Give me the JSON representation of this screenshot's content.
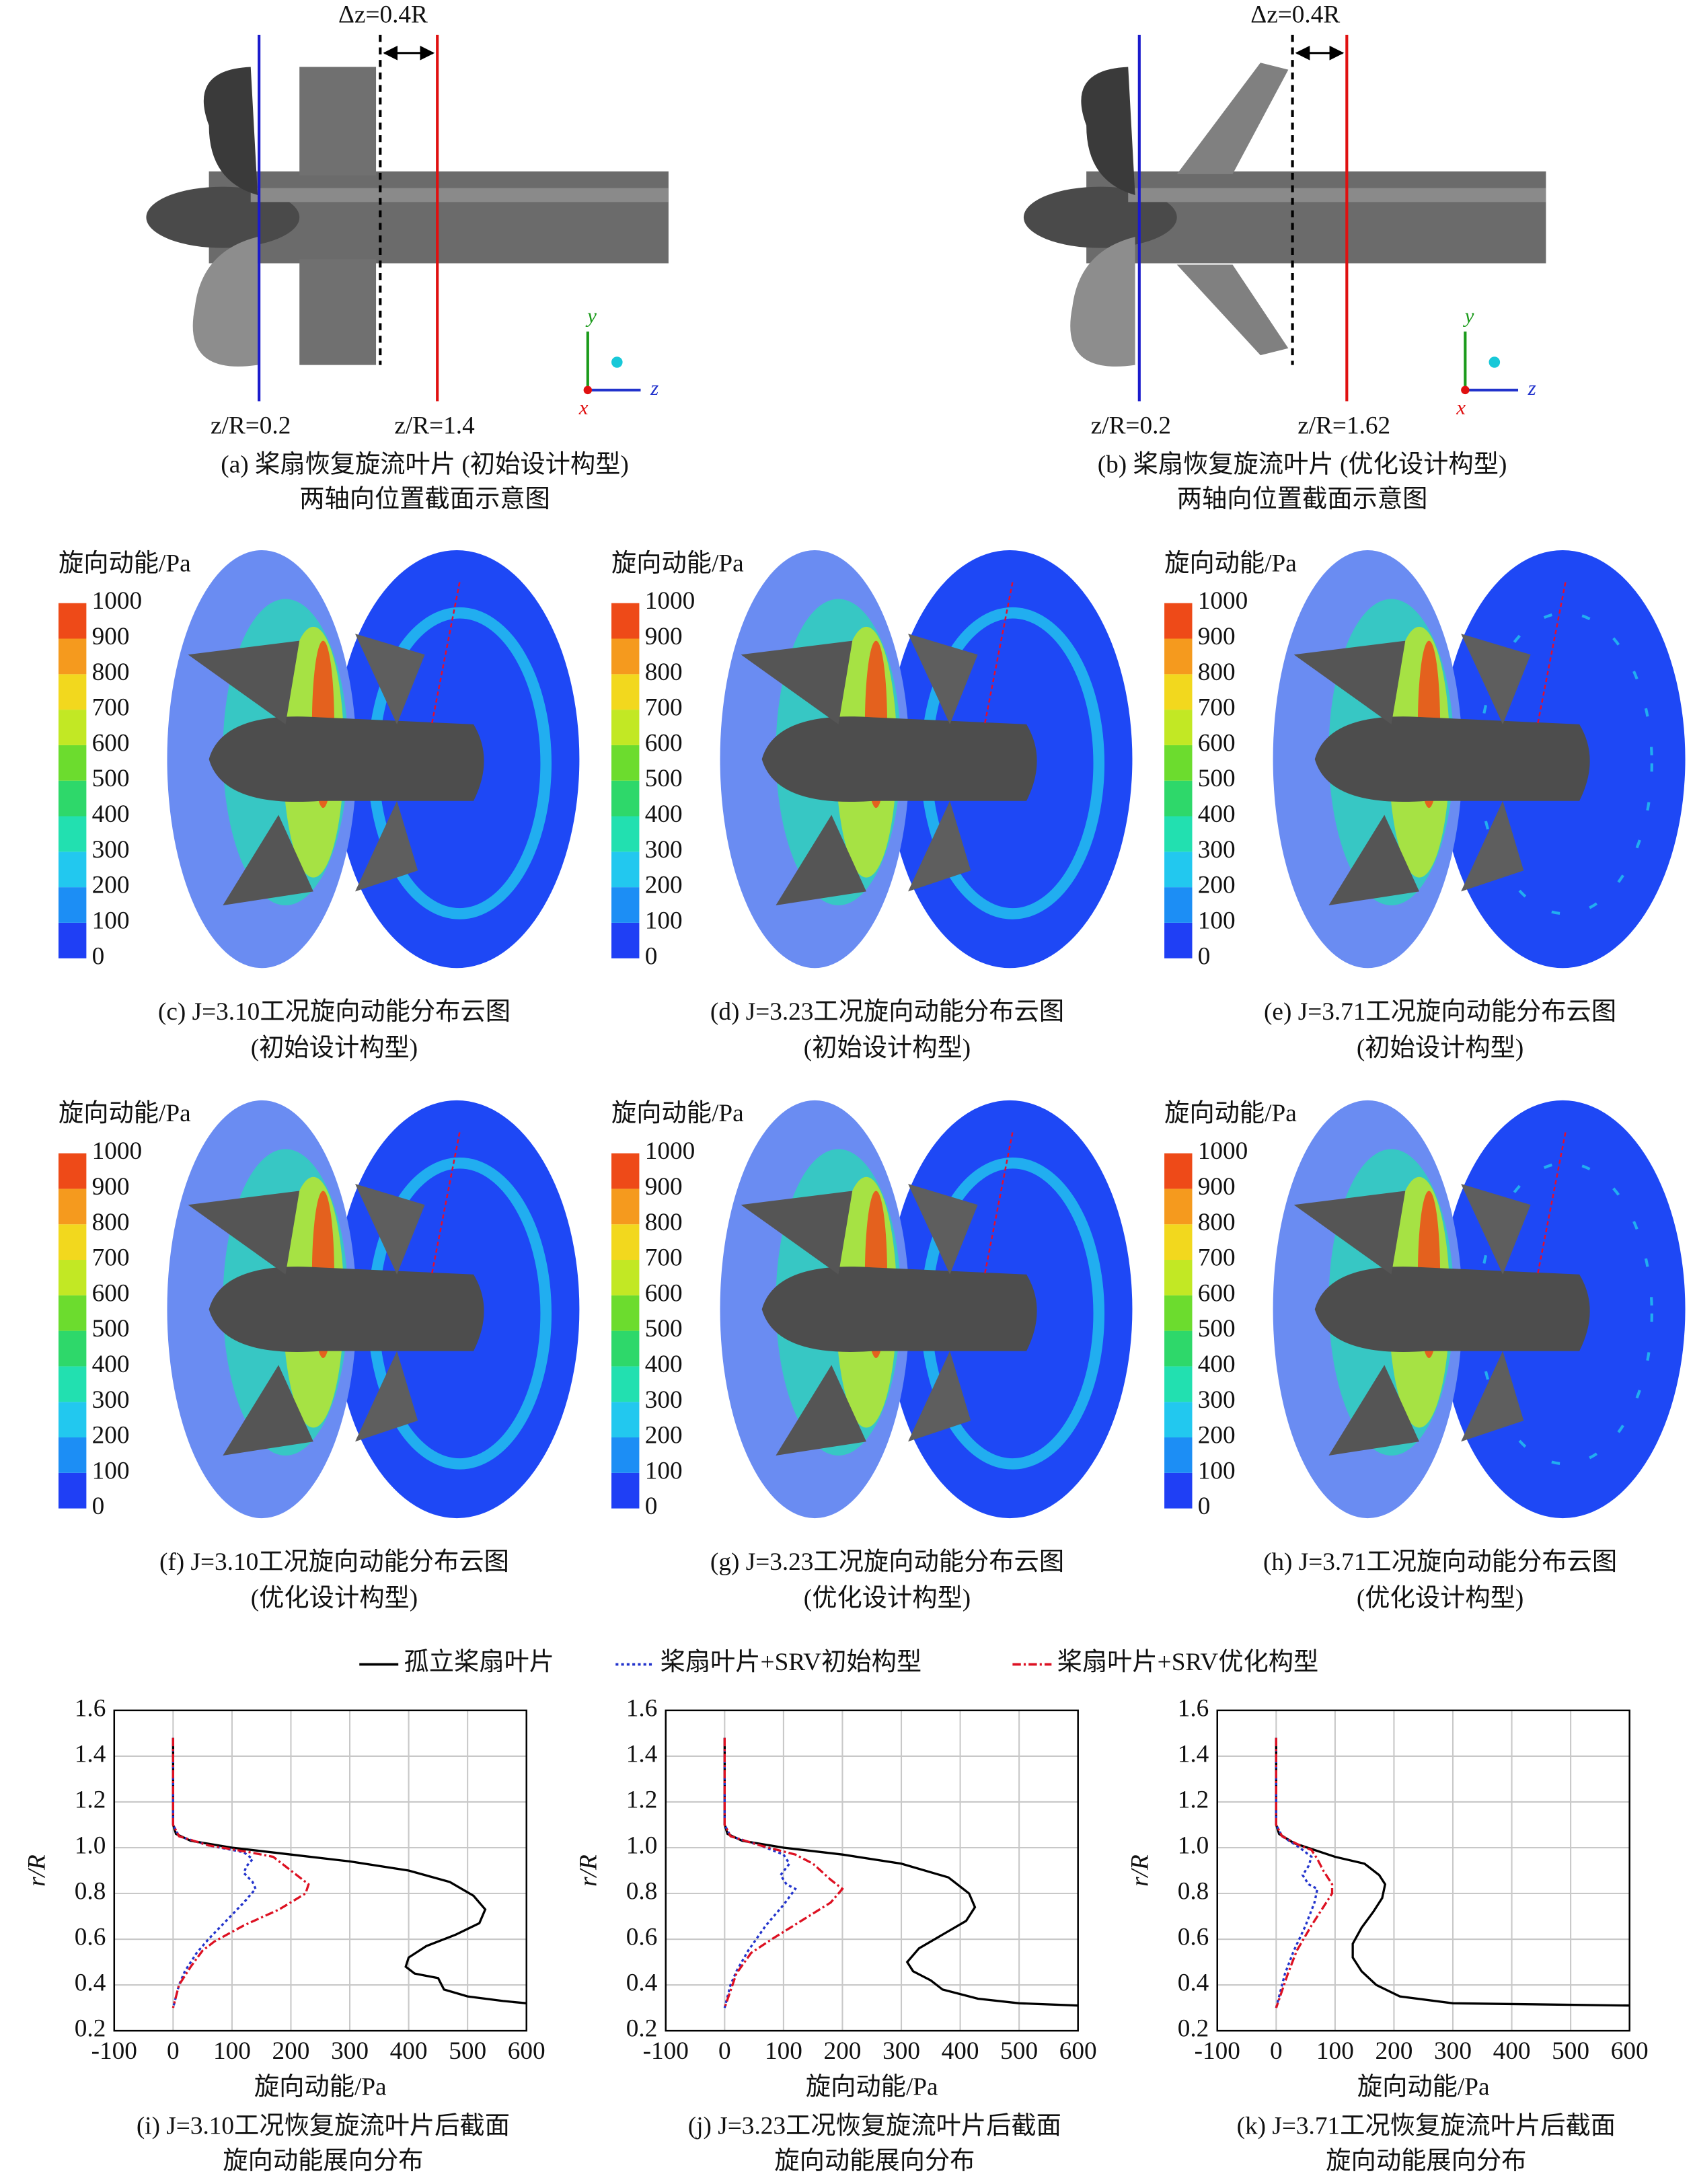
{
  "schematics": [
    {
      "dz_label": "Δz=0.4R",
      "plane_labels": [
        "z/R=0.2",
        "z/R=1.4"
      ],
      "axes": [
        "y",
        "z",
        "x"
      ],
      "caption": [
        "(a) 桨扇恢复旋流叶片 (初始设计构型)",
        "两轴向位置截面示意图"
      ]
    },
    {
      "dz_label": "Δz=0.4R",
      "plane_labels": [
        "z/R=0.2",
        "z/R=1.62"
      ],
      "axes": [
        "y",
        "z",
        "x"
      ],
      "caption": [
        "(b) 桨扇恢复旋流叶片 (优化设计构型)",
        "两轴向位置截面示意图"
      ]
    }
  ],
  "colorbar": {
    "title": "旋向动能/Pa",
    "ticks": [
      0,
      100,
      200,
      300,
      400,
      500,
      600,
      700,
      800,
      900,
      1000
    ],
    "colors": [
      "#1f3ff5",
      "#1c8ef5",
      "#22c8ef",
      "#22e0b0",
      "#2ed86a",
      "#6cdc2e",
      "#c2e824",
      "#f2d81e",
      "#f59a1e",
      "#ee4a18"
    ]
  },
  "contours": [
    {
      "caption": [
        "(c) J=3.10工况旋向动能分布云图",
        "(初始设计构型)"
      ]
    },
    {
      "caption": [
        "(d) J=3.23工况旋向动能分布云图",
        "(初始设计构型)"
      ]
    },
    {
      "caption": [
        "(e) J=3.71工况旋向动能分布云图",
        "(初始设计构型)"
      ]
    },
    {
      "caption": [
        "(f) J=3.10工况旋向动能分布云图",
        "(优化设计构型)"
      ]
    },
    {
      "caption": [
        "(g) J=3.23工况旋向动能分布云图",
        "(优化设计构型)"
      ]
    },
    {
      "caption": [
        "(h) J=3.71工况旋向动能分布云图",
        "(优化设计构型)"
      ]
    }
  ],
  "chart_data": [
    {
      "type": "line",
      "title": [
        "(i) J=3.10工况恢复旋流叶片后截面",
        "旋向动能展向分布"
      ],
      "xlabel": "旋向动能/Pa",
      "ylabel": "r/R",
      "xlim": [
        -100,
        600
      ],
      "xticks": [
        -100,
        0,
        100,
        200,
        300,
        400,
        500,
        600
      ],
      "ylim": [
        0.2,
        1.6
      ],
      "yticks": [
        0.2,
        0.4,
        0.6,
        0.8,
        {
          "value": 1,
          "label": "1.0"
        },
        1.2,
        1.4,
        1.6
      ],
      "grid": true,
      "series": [
        {
          "name": "孤立桨扇叶片",
          "color": "#000000",
          "dash": "solid",
          "x": [
            0,
            0,
            5,
            30,
            100,
            200,
            300,
            400,
            470,
            510,
            530,
            520,
            480,
            430,
            400,
            395,
            410,
            450,
            460,
            500,
            560,
            600
          ],
          "values": [
            1.48,
            1.1,
            1.06,
            1.03,
            1.0,
            0.97,
            0.94,
            0.9,
            0.85,
            0.79,
            0.73,
            0.67,
            0.62,
            0.57,
            0.52,
            0.48,
            0.45,
            0.43,
            0.38,
            0.35,
            0.33,
            0.32
          ]
        },
        {
          "name": "桨扇叶片+SRV初始构型",
          "color": "#2233cc",
          "dash": "dotted",
          "x": [
            0,
            0,
            10,
            60,
            120,
            135,
            125,
            120,
            135,
            140,
            120,
            90,
            60,
            40,
            20,
            10,
            0
          ],
          "values": [
            1.48,
            1.1,
            1.05,
            1.01,
            0.98,
            0.95,
            0.92,
            0.89,
            0.85,
            0.82,
            0.76,
            0.68,
            0.6,
            0.54,
            0.46,
            0.4,
            0.3
          ]
        },
        {
          "name": "桨扇叶片+SRV优化构型",
          "color": "#dd1122",
          "dash": "dashdot",
          "x": [
            0,
            0,
            10,
            60,
            130,
            170,
            200,
            230,
            225,
            180,
            120,
            70,
            50,
            30,
            10,
            0
          ],
          "values": [
            1.48,
            1.1,
            1.05,
            1.01,
            0.98,
            0.96,
            0.9,
            0.84,
            0.8,
            0.73,
            0.66,
            0.59,
            0.55,
            0.48,
            0.4,
            0.3
          ]
        }
      ]
    },
    {
      "type": "line",
      "title": [
        "(j) J=3.23工况恢复旋流叶片后截面",
        "旋向动能展向分布"
      ],
      "xlabel": "旋向动能/Pa",
      "ylabel": "r/R",
      "xlim": [
        -100,
        600
      ],
      "xticks": [
        -100,
        0,
        100,
        200,
        300,
        400,
        500,
        600
      ],
      "ylim": [
        0.2,
        1.6
      ],
      "yticks": [
        0.2,
        0.4,
        0.6,
        0.8,
        {
          "value": 1,
          "label": "1.0"
        },
        1.2,
        1.4,
        1.6
      ],
      "grid": true,
      "series": [
        {
          "color": "#000000",
          "dash": "solid",
          "x": [
            0,
            0,
            5,
            30,
            100,
            200,
            300,
            380,
            415,
            425,
            410,
            370,
            330,
            310,
            320,
            350,
            370,
            430,
            500,
            600
          ],
          "values": [
            1.48,
            1.1,
            1.06,
            1.03,
            1.0,
            0.97,
            0.93,
            0.87,
            0.8,
            0.74,
            0.68,
            0.62,
            0.56,
            0.5,
            0.46,
            0.42,
            0.38,
            0.34,
            0.32,
            0.31
          ]
        },
        {
          "color": "#2233cc",
          "dash": "dotted",
          "x": [
            0,
            0,
            10,
            60,
            100,
            110,
            95,
            105,
            120,
            100,
            70,
            40,
            20,
            10,
            0
          ],
          "values": [
            1.48,
            1.1,
            1.05,
            1.01,
            0.97,
            0.93,
            0.88,
            0.84,
            0.82,
            0.75,
            0.66,
            0.55,
            0.46,
            0.4,
            0.3
          ]
        },
        {
          "color": "#dd1122",
          "dash": "dashdot",
          "x": [
            0,
            0,
            10,
            60,
            120,
            150,
            180,
            200,
            180,
            130,
            80,
            45,
            20,
            0
          ],
          "values": [
            1.48,
            1.1,
            1.05,
            1.01,
            0.97,
            0.93,
            0.86,
            0.82,
            0.76,
            0.68,
            0.6,
            0.54,
            0.45,
            0.3
          ]
        }
      ]
    },
    {
      "type": "line",
      "title": [
        "(k) J=3.71工况恢复旋流叶片后截面",
        "旋向动能展向分布"
      ],
      "xlabel": "旋向动能/Pa",
      "ylabel": "r/R",
      "xlim": [
        -100,
        600
      ],
      "xticks": [
        -100,
        0,
        100,
        200,
        300,
        400,
        500,
        600
      ],
      "ylim": [
        0.2,
        1.6
      ],
      "yticks": [
        0.2,
        0.4,
        0.6,
        0.8,
        {
          "value": 1,
          "label": "1.0"
        },
        1.2,
        1.4,
        1.6
      ],
      "grid": true,
      "series": [
        {
          "color": "#000000",
          "dash": "solid",
          "x": [
            0,
            0,
            5,
            30,
            100,
            150,
            175,
            185,
            180,
            165,
            145,
            130,
            130,
            145,
            170,
            210,
            300,
            600
          ],
          "values": [
            1.48,
            1.1,
            1.06,
            1.02,
            0.96,
            0.93,
            0.88,
            0.84,
            0.78,
            0.72,
            0.65,
            0.58,
            0.52,
            0.46,
            0.4,
            0.35,
            0.32,
            0.31
          ]
        },
        {
          "color": "#2233cc",
          "dash": "dotted",
          "x": [
            0,
            0,
            10,
            40,
            60,
            55,
            45,
            55,
            70,
            65,
            50,
            30,
            15,
            0
          ],
          "values": [
            1.48,
            1.1,
            1.05,
            1.0,
            0.96,
            0.92,
            0.88,
            0.84,
            0.82,
            0.76,
            0.66,
            0.55,
            0.45,
            0.3
          ]
        },
        {
          "color": "#dd1122",
          "dash": "dashdot",
          "x": [
            0,
            0,
            10,
            40,
            60,
            70,
            80,
            95,
            95,
            80,
            60,
            35,
            20,
            0
          ],
          "values": [
            1.48,
            1.1,
            1.05,
            1.01,
            0.99,
            0.95,
            0.9,
            0.84,
            0.8,
            0.74,
            0.66,
            0.55,
            0.45,
            0.3
          ]
        }
      ]
    }
  ]
}
